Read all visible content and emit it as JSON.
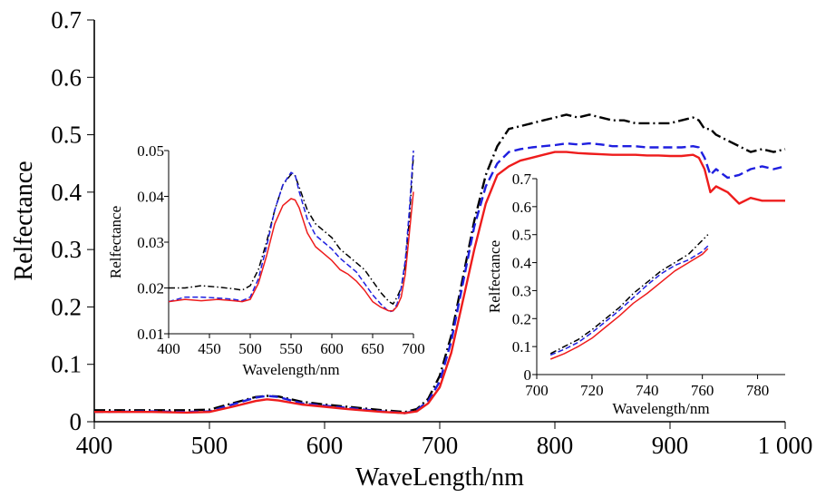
{
  "chart_data": [
    {
      "type": "line",
      "xlabel": "WaveLength/nm",
      "ylabel": "Relfectance",
      "xlim": [
        400,
        1000
      ],
      "ylim": [
        0,
        0.7
      ],
      "xticks": [
        400,
        500,
        600,
        700,
        800,
        900,
        1000
      ],
      "xtick_labels": [
        "400",
        "500",
        "600",
        "700",
        "800",
        "900",
        "1 000"
      ],
      "yticks": [
        0,
        0.1,
        0.2,
        0.3,
        0.4,
        0.5,
        0.6,
        0.7
      ],
      "ytick_labels": [
        "0",
        "0.1",
        "0.2",
        "0.3",
        "0.4",
        "0.5",
        "0.6",
        "0.7"
      ],
      "grid": false,
      "series": [
        {
          "color": "#000000",
          "dash": "dashdot",
          "x": [
            400,
            450,
            480,
            500,
            520,
            540,
            550,
            560,
            580,
            600,
            620,
            650,
            670,
            680,
            690,
            700,
            710,
            720,
            730,
            740,
            750,
            760,
            770,
            780,
            790,
            800,
            810,
            820,
            830,
            840,
            850,
            860,
            870,
            880,
            890,
            900,
            910,
            920,
            925,
            930,
            935,
            940,
            950,
            960,
            970,
            980,
            990,
            1000
          ],
          "y": [
            0.02,
            0.02,
            0.02,
            0.021,
            0.032,
            0.043,
            0.045,
            0.044,
            0.035,
            0.03,
            0.026,
            0.02,
            0.017,
            0.022,
            0.04,
            0.08,
            0.15,
            0.25,
            0.35,
            0.43,
            0.48,
            0.51,
            0.515,
            0.52,
            0.525,
            0.53,
            0.535,
            0.53,
            0.535,
            0.53,
            0.525,
            0.525,
            0.52,
            0.52,
            0.52,
            0.52,
            0.525,
            0.53,
            0.525,
            0.51,
            0.51,
            0.5,
            0.49,
            0.48,
            0.47,
            0.475,
            0.47,
            0.475
          ]
        },
        {
          "color": "#1f1fdf",
          "dash": "dashed",
          "x": [
            400,
            450,
            480,
            500,
            520,
            540,
            550,
            560,
            580,
            600,
            620,
            650,
            670,
            680,
            690,
            700,
            710,
            720,
            730,
            740,
            750,
            760,
            770,
            780,
            790,
            800,
            810,
            820,
            830,
            840,
            850,
            860,
            870,
            880,
            890,
            900,
            910,
            920,
            925,
            930,
            935,
            940,
            950,
            960,
            970,
            980,
            990,
            1000
          ],
          "y": [
            0.017,
            0.018,
            0.017,
            0.018,
            0.03,
            0.042,
            0.045,
            0.043,
            0.032,
            0.028,
            0.024,
            0.018,
            0.015,
            0.02,
            0.036,
            0.07,
            0.14,
            0.24,
            0.34,
            0.41,
            0.45,
            0.47,
            0.475,
            0.478,
            0.48,
            0.482,
            0.485,
            0.483,
            0.485,
            0.483,
            0.48,
            0.48,
            0.48,
            0.478,
            0.478,
            0.478,
            0.478,
            0.48,
            0.478,
            0.46,
            0.43,
            0.44,
            0.425,
            0.43,
            0.44,
            0.445,
            0.44,
            0.445
          ]
        },
        {
          "color": "#ee1c1c",
          "dash": "solid",
          "x": [
            400,
            450,
            480,
            500,
            520,
            540,
            550,
            560,
            580,
            600,
            620,
            650,
            670,
            680,
            690,
            700,
            710,
            720,
            730,
            740,
            750,
            760,
            770,
            780,
            790,
            800,
            810,
            820,
            830,
            840,
            850,
            860,
            870,
            880,
            890,
            900,
            910,
            920,
            925,
            930,
            935,
            940,
            950,
            960,
            970,
            980,
            990,
            1000
          ],
          "y": [
            0.017,
            0.017,
            0.016,
            0.017,
            0.026,
            0.036,
            0.039,
            0.037,
            0.03,
            0.026,
            0.022,
            0.017,
            0.015,
            0.018,
            0.032,
            0.06,
            0.12,
            0.21,
            0.3,
            0.38,
            0.43,
            0.445,
            0.455,
            0.46,
            0.465,
            0.47,
            0.47,
            0.468,
            0.467,
            0.466,
            0.465,
            0.465,
            0.465,
            0.464,
            0.464,
            0.463,
            0.463,
            0.465,
            0.46,
            0.44,
            0.4,
            0.41,
            0.4,
            0.38,
            0.39,
            0.385,
            0.385,
            0.385
          ]
        }
      ]
    },
    {
      "type": "line",
      "xlabel": "Wavelength/nm",
      "ylabel": "Relfectance",
      "xlim": [
        400,
        700
      ],
      "ylim": [
        0.01,
        0.05
      ],
      "xticks": [
        400,
        450,
        500,
        550,
        600,
        650,
        700
      ],
      "xtick_labels": [
        "400",
        "450",
        "500",
        "550",
        "600",
        "650",
        "700"
      ],
      "yticks": [
        0.01,
        0.02,
        0.03,
        0.04,
        0.05
      ],
      "ytick_labels": [
        "0.01",
        "0.02",
        "0.03",
        "0.04",
        "0.05"
      ],
      "grid": false,
      "series": [
        {
          "color": "#000000",
          "dash": "dashdot",
          "x": [
            400,
            420,
            440,
            460,
            480,
            490,
            500,
            510,
            520,
            530,
            540,
            550,
            555,
            560,
            570,
            580,
            590,
            600,
            610,
            620,
            630,
            640,
            650,
            660,
            670,
            675,
            680,
            685,
            690,
            695,
            700
          ],
          "y": [
            0.02,
            0.02,
            0.0205,
            0.0202,
            0.0198,
            0.0195,
            0.0205,
            0.024,
            0.03,
            0.037,
            0.0425,
            0.0448,
            0.0445,
            0.042,
            0.037,
            0.034,
            0.0325,
            0.031,
            0.0285,
            0.027,
            0.0255,
            0.024,
            0.0215,
            0.019,
            0.017,
            0.0165,
            0.018,
            0.02,
            0.025,
            0.035,
            0.049
          ]
        },
        {
          "color": "#1f1fdf",
          "dash": "dashed",
          "x": [
            400,
            420,
            440,
            460,
            480,
            490,
            500,
            510,
            520,
            530,
            540,
            550,
            555,
            560,
            570,
            580,
            590,
            600,
            610,
            620,
            630,
            640,
            650,
            660,
            670,
            675,
            680,
            685,
            690,
            695,
            700
          ],
          "y": [
            0.017,
            0.018,
            0.018,
            0.0178,
            0.0175,
            0.0172,
            0.018,
            0.022,
            0.029,
            0.037,
            0.0425,
            0.0452,
            0.0447,
            0.041,
            0.035,
            0.0315,
            0.03,
            0.0285,
            0.0265,
            0.025,
            0.0235,
            0.021,
            0.0185,
            0.0165,
            0.0148,
            0.015,
            0.0165,
            0.02,
            0.026,
            0.037,
            0.05
          ]
        },
        {
          "color": "#ee1c1c",
          "dash": "solid",
          "x": [
            400,
            420,
            440,
            460,
            480,
            490,
            500,
            510,
            520,
            530,
            540,
            550,
            555,
            560,
            570,
            580,
            590,
            600,
            610,
            620,
            630,
            640,
            650,
            660,
            670,
            675,
            680,
            685,
            690,
            695,
            700
          ],
          "y": [
            0.017,
            0.0175,
            0.0172,
            0.0175,
            0.0172,
            0.017,
            0.0175,
            0.021,
            0.027,
            0.034,
            0.038,
            0.0395,
            0.0392,
            0.0375,
            0.032,
            0.029,
            0.0275,
            0.026,
            0.024,
            0.023,
            0.0215,
            0.0195,
            0.017,
            0.0158,
            0.015,
            0.015,
            0.016,
            0.018,
            0.023,
            0.032,
            0.041
          ]
        }
      ]
    },
    {
      "type": "line",
      "xlabel": "Wavelength/nm",
      "ylabel": "Relfectance",
      "xlim": [
        700,
        790
      ],
      "ylim": [
        0,
        0.7
      ],
      "xticks": [
        700,
        720,
        740,
        760,
        780
      ],
      "xtick_labels": [
        "700",
        "720",
        "740",
        "760",
        "780"
      ],
      "yticks": [
        0,
        0.1,
        0.2,
        0.3,
        0.4,
        0.5,
        0.6,
        0.7
      ],
      "ytick_labels": [
        "0",
        "0.1",
        "0.2",
        "0.3",
        "0.4",
        "0.5",
        "0.6",
        "0.7"
      ],
      "grid": false,
      "series": [
        {
          "color": "#000000",
          "dash": "dashdot",
          "x": [
            705,
            710,
            715,
            720,
            725,
            730,
            735,
            740,
            745,
            750,
            755,
            760,
            762
          ],
          "y": [
            0.075,
            0.1,
            0.125,
            0.16,
            0.2,
            0.24,
            0.29,
            0.33,
            0.37,
            0.4,
            0.43,
            0.48,
            0.5
          ]
        },
        {
          "color": "#1f1fdf",
          "dash": "dashed",
          "x": [
            705,
            710,
            715,
            720,
            725,
            730,
            735,
            740,
            745,
            750,
            755,
            760,
            762
          ],
          "y": [
            0.07,
            0.09,
            0.115,
            0.15,
            0.19,
            0.23,
            0.275,
            0.32,
            0.36,
            0.39,
            0.41,
            0.44,
            0.46
          ]
        },
        {
          "color": "#ee1c1c",
          "dash": "solid",
          "x": [
            705,
            710,
            715,
            720,
            725,
            730,
            735,
            740,
            745,
            750,
            755,
            760,
            762
          ],
          "y": [
            0.055,
            0.075,
            0.1,
            0.13,
            0.17,
            0.21,
            0.255,
            0.29,
            0.33,
            0.37,
            0.4,
            0.43,
            0.45
          ]
        }
      ]
    }
  ]
}
